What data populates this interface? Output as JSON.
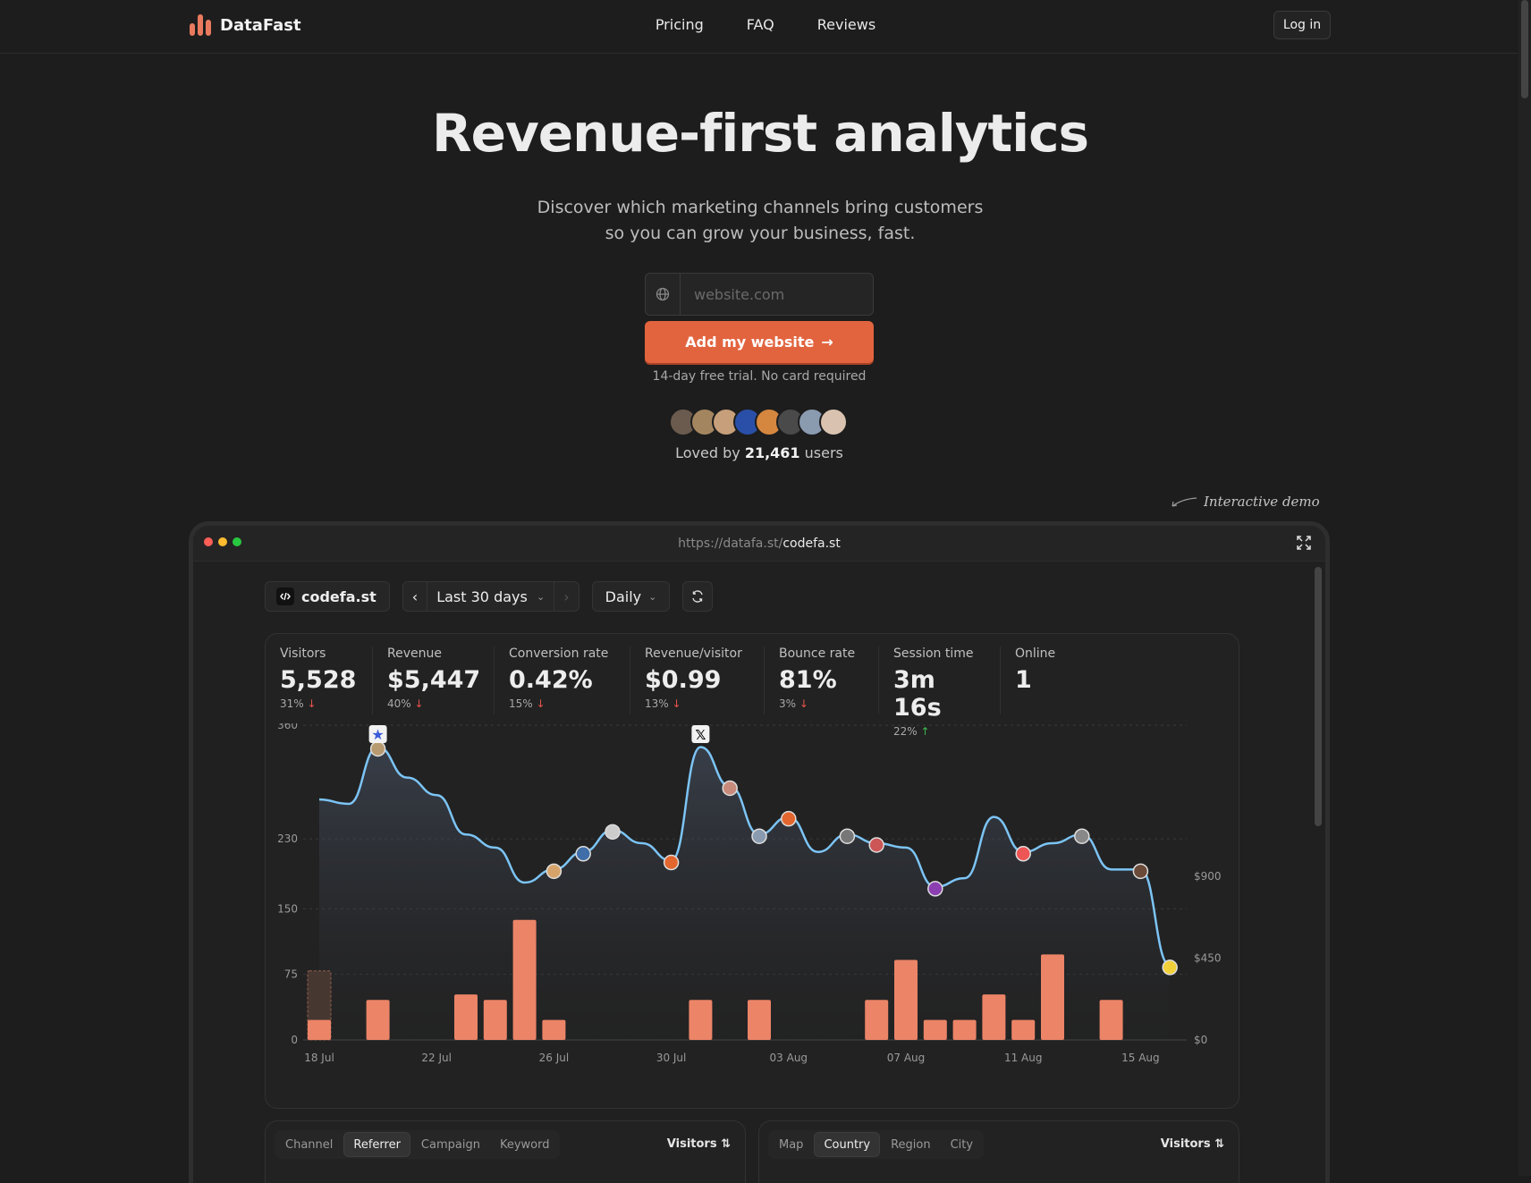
{
  "nav": {
    "brand": "DataFast",
    "links": [
      "Pricing",
      "FAQ",
      "Reviews"
    ],
    "login": "Log in"
  },
  "hero": {
    "title": "Revenue-first analytics",
    "subtitle_1": "Discover which marketing channels bring customers",
    "subtitle_2": "so you can grow your business, fast.",
    "input_placeholder": "website.com",
    "cta": "Add my website",
    "trial": "14-day free trial. No card required",
    "loved_prefix": "Loved by",
    "loved_count": "21,461",
    "loved_suffix": "users"
  },
  "demo": {
    "note": "Interactive demo",
    "url_prefix": "https://datafa.st/",
    "url_site": "codefa.st",
    "site": "codefa.st",
    "range": "Last 30 days",
    "interval": "Daily"
  },
  "stats": [
    {
      "label": "Visitors",
      "value": "5,528",
      "change": "31%",
      "dir": "down"
    },
    {
      "label": "Revenue",
      "value": "$5,447",
      "change": "40%",
      "dir": "down"
    },
    {
      "label": "Conversion rate",
      "value": "0.42%",
      "change": "15%",
      "dir": "down"
    },
    {
      "label": "Revenue/visitor",
      "value": "$0.99",
      "change": "13%",
      "dir": "down"
    },
    {
      "label": "Bounce rate",
      "value": "81%",
      "change": "3%",
      "dir": "down"
    },
    {
      "label": "Session time",
      "value": "3m 16s",
      "change": "22%",
      "dir": "up"
    },
    {
      "label": "Online",
      "value": "1",
      "change": "",
      "dir": ""
    }
  ],
  "chart_data": {
    "type": "bar+line",
    "x": [
      "18 Jul",
      "19 Jul",
      "20 Jul",
      "21 Jul",
      "22 Jul",
      "23 Jul",
      "24 Jul",
      "25 Jul",
      "26 Jul",
      "27 Jul",
      "28 Jul",
      "29 Jul",
      "30 Jul",
      "31 Jul",
      "01 Aug",
      "02 Aug",
      "03 Aug",
      "04 Aug",
      "05 Aug",
      "06 Aug",
      "07 Aug",
      "08 Aug",
      "09 Aug",
      "10 Aug",
      "11 Aug",
      "12 Aug",
      "13 Aug",
      "14 Aug",
      "15 Aug",
      "16 Aug"
    ],
    "xticks": [
      "18 Jul",
      "22 Jul",
      "26 Jul",
      "30 Jul",
      "03 Aug",
      "07 Aug",
      "11 Aug",
      "15 Aug"
    ],
    "visitors": [
      275,
      270,
      335,
      300,
      280,
      235,
      220,
      180,
      195,
      215,
      240,
      225,
      205,
      335,
      290,
      235,
      255,
      215,
      235,
      225,
      220,
      175,
      185,
      255,
      215,
      225,
      235,
      195,
      195,
      85
    ],
    "revenue": [
      110,
      0,
      220,
      0,
      0,
      250,
      220,
      660,
      110,
      0,
      0,
      0,
      0,
      220,
      0,
      220,
      0,
      0,
      0,
      220,
      440,
      110,
      110,
      250,
      110,
      470,
      0,
      220,
      0,
      0
    ],
    "revenue_pending": [
      [
        0,
        380
      ]
    ],
    "y_left_ticks": [
      0,
      75,
      150,
      230,
      360
    ],
    "y_right_ticks": [
      "$0",
      "$450",
      "$900"
    ],
    "colors": {
      "line": "#7cc4f5",
      "bar": "#ec8467"
    }
  },
  "panel_left": {
    "tabs": [
      "Channel",
      "Referrer",
      "Campaign",
      "Keyword"
    ],
    "active": "Referrer",
    "sort": "Visitors"
  },
  "panel_right": {
    "tabs": [
      "Map",
      "Country",
      "Region",
      "City"
    ],
    "active": "Country",
    "sort": "Visitors"
  }
}
